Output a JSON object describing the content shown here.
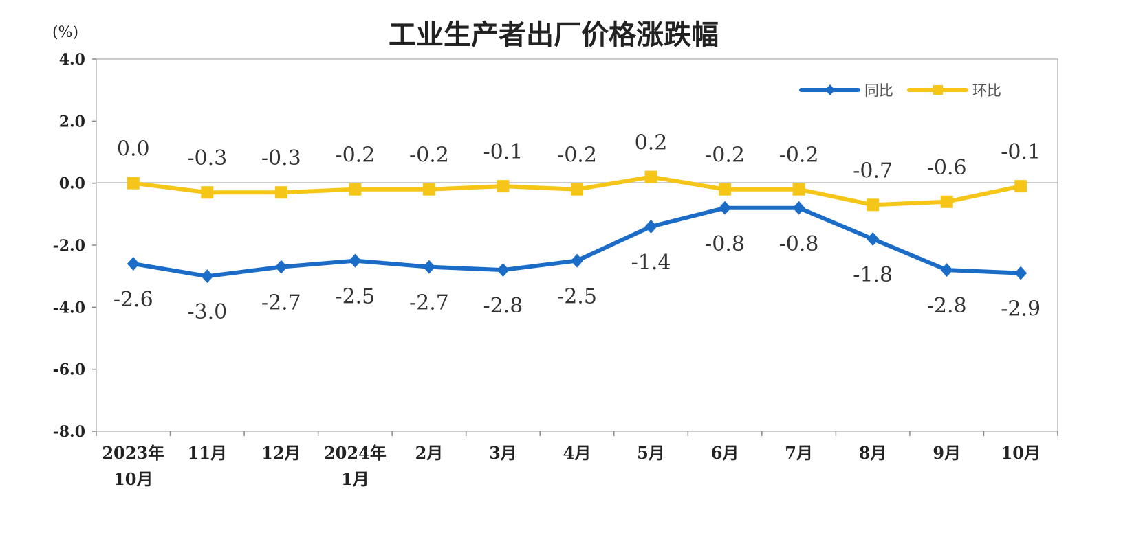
{
  "chart_data": {
    "type": "line",
    "title": "工业生产者出厂价格涨跌幅",
    "ylabel": "(%)",
    "xlabel": "",
    "ylim": [
      -8.0,
      4.0
    ],
    "yticks": [
      "4.0",
      "2.0",
      "0.0",
      "-2.0",
      "-4.0",
      "-6.0",
      "-8.0"
    ],
    "ytick_values": [
      4,
      2,
      0,
      -2,
      -4,
      -6,
      -8
    ],
    "categories": [
      [
        "2023年",
        "10月"
      ],
      [
        "11月"
      ],
      [
        "12月"
      ],
      [
        "2024年",
        "1月"
      ],
      [
        "2月"
      ],
      [
        "3月"
      ],
      [
        "4月"
      ],
      [
        "5月"
      ],
      [
        "6月"
      ],
      [
        "7月"
      ],
      [
        "8月"
      ],
      [
        "9月"
      ],
      [
        "10月"
      ]
    ],
    "grid": "zero line only",
    "legend_position": "top-right",
    "series": [
      {
        "name": "同比",
        "color": "#1b6cc6",
        "marker": "diamond",
        "values": [
          -2.6,
          -3.0,
          -2.7,
          -2.5,
          -2.7,
          -2.8,
          -2.5,
          -1.4,
          -0.8,
          -0.8,
          -1.8,
          -2.8,
          -2.9
        ],
        "labels": [
          "-2.6",
          "-3.0",
          "-2.7",
          "-2.5",
          "-2.7",
          "-2.8",
          "-2.5",
          "-1.4",
          "-0.8",
          "-0.8",
          "-1.8",
          "-2.8",
          "-2.9"
        ]
      },
      {
        "name": "环比",
        "color": "#f5c518",
        "marker": "square",
        "values": [
          0.0,
          -0.3,
          -0.3,
          -0.2,
          -0.2,
          -0.1,
          -0.2,
          0.2,
          -0.2,
          -0.2,
          -0.7,
          -0.6,
          -0.1
        ],
        "labels": [
          "0.0",
          "-0.3",
          "-0.3",
          "-0.2",
          "-0.2",
          "-0.1",
          "-0.2",
          "0.2",
          "-0.2",
          "-0.2",
          "-0.7",
          "-0.6",
          "-0.1"
        ]
      }
    ]
  }
}
